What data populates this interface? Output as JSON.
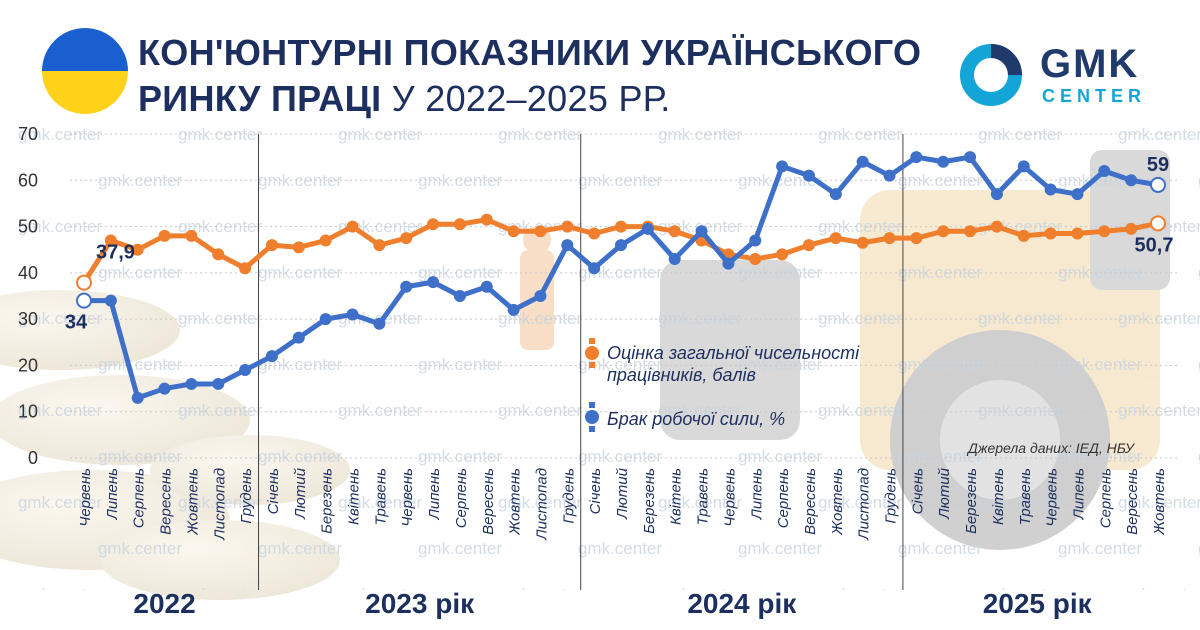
{
  "header": {
    "title_bold_line1": "КОН'ЮНТУРНІ ПОКАЗНИКИ УКРАЇНСЬКОГО",
    "title_bold_line2": "РИНКУ ПРАЦІ",
    "title_regular_line2": " У 2022–2025 РР."
  },
  "logo": {
    "line1": "GMK",
    "line2": "CENTER"
  },
  "watermark_text": "gmk.center",
  "source": "Джерела даних: ІЕД, НБУ",
  "legend": {
    "orange_label": "Оцінка загальної чисельності працівників, балів",
    "blue_label": "Брак робочої сили, %"
  },
  "colors": {
    "orange": "#ef7f2c",
    "blue": "#3e70c9",
    "title": "#1d2f5f",
    "accent": "#12a5d6"
  },
  "chart_data": {
    "type": "line",
    "ylim": [
      0,
      70
    ],
    "yticks": [
      0,
      10,
      20,
      30,
      40,
      50,
      60,
      70
    ],
    "grid": true,
    "categories": [
      "Червень",
      "Липень",
      "Серпень",
      "Вересень",
      "Жовтень",
      "Листопад",
      "Грудень",
      "Січень",
      "Лютий",
      "Березень",
      "Квітень",
      "Травень",
      "Червень",
      "Липень",
      "Серпень",
      "Вересень",
      "Жовтень",
      "Листопад",
      "Грудень",
      "Січень",
      "Лютий",
      "Березень",
      "Квітень",
      "Травень",
      "Червень",
      "Липень",
      "Серпень",
      "Вересень",
      "Жовтень",
      "Листопад",
      "Грудень",
      "Січень",
      "Лютий",
      "Березень",
      "Квітень",
      "Травень",
      "Червень",
      "Липень",
      "Серпень",
      "Вересень",
      "Жовтень"
    ],
    "year_groups": [
      {
        "label": "2022",
        "start": 0,
        "end": 6
      },
      {
        "label": "2023 рік",
        "start": 7,
        "end": 18
      },
      {
        "label": "2024 рік",
        "start": 19,
        "end": 30
      },
      {
        "label": "2025 рік",
        "start": 31,
        "end": 40
      }
    ],
    "series": [
      {
        "name": "Оцінка загальної чисельності працівників, балів",
        "color": "#ef7f2c",
        "values": [
          37.9,
          47,
          45,
          48,
          48,
          44,
          41,
          46,
          45.5,
          47,
          50,
          46,
          47.5,
          50.5,
          50.5,
          51.5,
          49,
          49,
          50,
          48.5,
          50,
          50,
          49,
          47,
          44,
          43,
          44,
          46,
          47.5,
          46.5,
          47.5,
          47.5,
          49,
          49,
          50,
          48,
          48.5,
          48.5,
          49,
          49.5,
          50.7
        ]
      },
      {
        "name": "Брак робочої сили, %",
        "color": "#3e70c9",
        "values": [
          34,
          34,
          13,
          15,
          16,
          16,
          19,
          22,
          26,
          30,
          31,
          29,
          37,
          38,
          35,
          37,
          32,
          35,
          46,
          41,
          46,
          49.5,
          43,
          49,
          42,
          47,
          63,
          61,
          57,
          64,
          61,
          65,
          64,
          65,
          57,
          63,
          58,
          57,
          62,
          60,
          59
        ]
      }
    ],
    "annotations": [
      {
        "series": 0,
        "index": 0,
        "text": "37,9"
      },
      {
        "series": 1,
        "index": 0,
        "text": "34"
      },
      {
        "series": 1,
        "index": 40,
        "text": "59"
      },
      {
        "series": 0,
        "index": 40,
        "text": "50,7"
      }
    ]
  }
}
